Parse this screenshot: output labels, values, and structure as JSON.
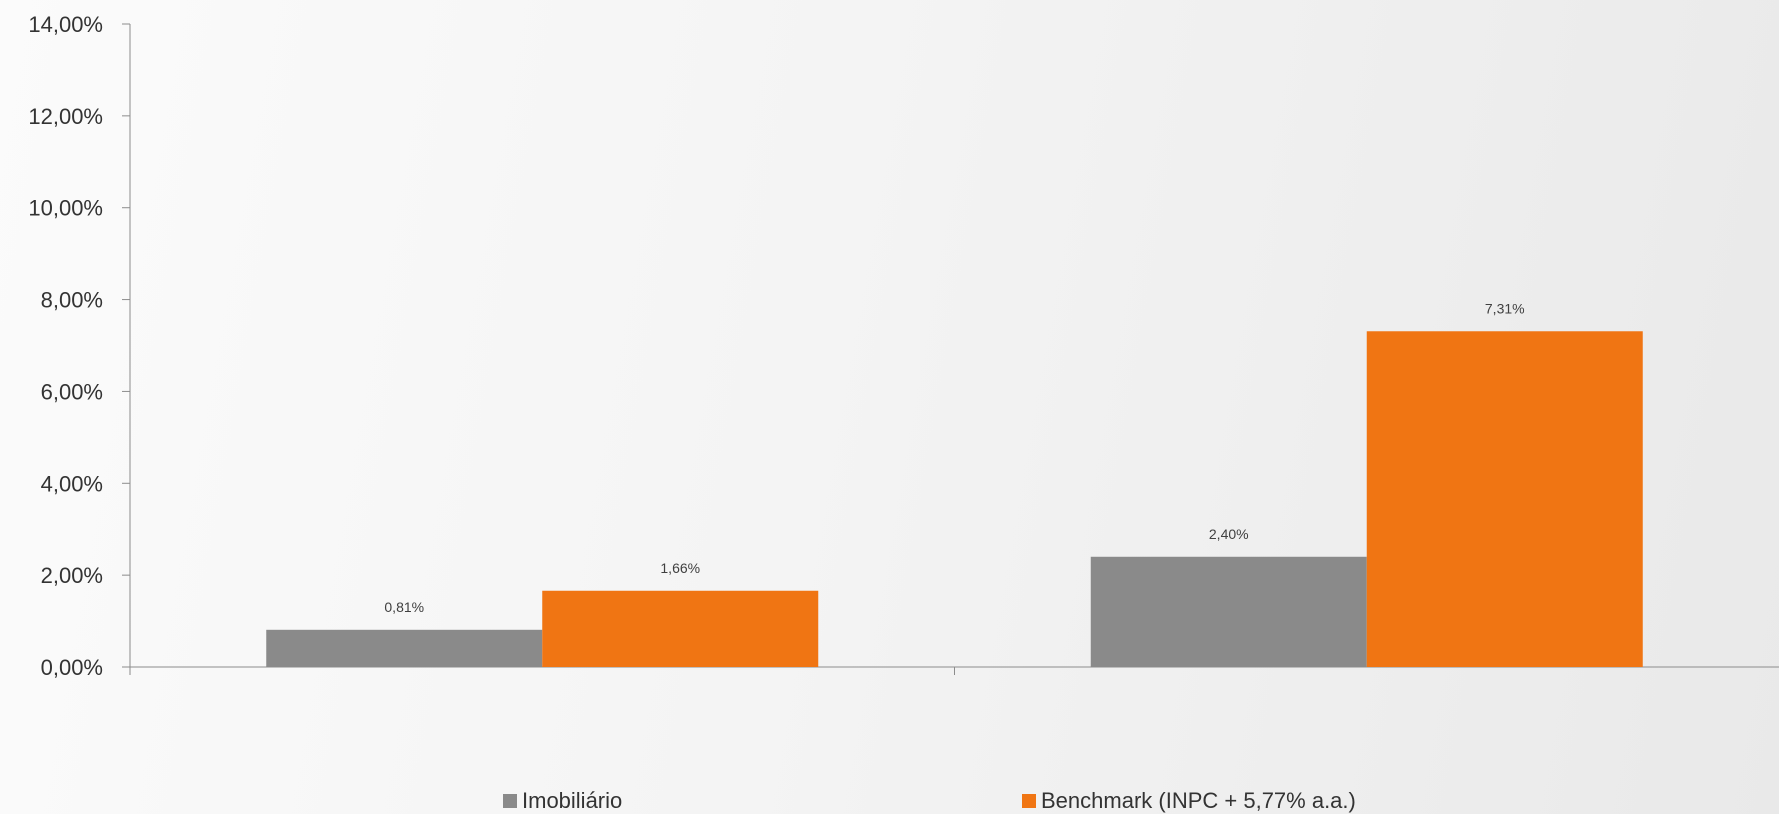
{
  "chart_data": {
    "type": "bar",
    "categories": [
      "",
      ""
    ],
    "series": [
      {
        "name": "Imobiliário",
        "values": [
          0.81,
          2.4
        ],
        "color": "#8a8a8a"
      },
      {
        "name": "Benchmark (INPC + 5,77% a.a.)",
        "values": [
          1.66,
          7.31
        ],
        "color": "#f07513"
      }
    ],
    "data_labels": [
      [
        "0,81%",
        "2,40%"
      ],
      [
        "1,66%",
        "7,31%"
      ]
    ],
    "ylim": [
      0,
      14
    ],
    "yticks": [
      0,
      2,
      4,
      6,
      8,
      10,
      12,
      14
    ],
    "ytick_labels": [
      "0,00%",
      "2,00%",
      "4,00%",
      "6,00%",
      "8,00%",
      "10,00%",
      "12,00%",
      "14,00%"
    ],
    "title": "",
    "xlabel": "",
    "ylabel": "",
    "grid": false,
    "legend_position": "bottom"
  }
}
